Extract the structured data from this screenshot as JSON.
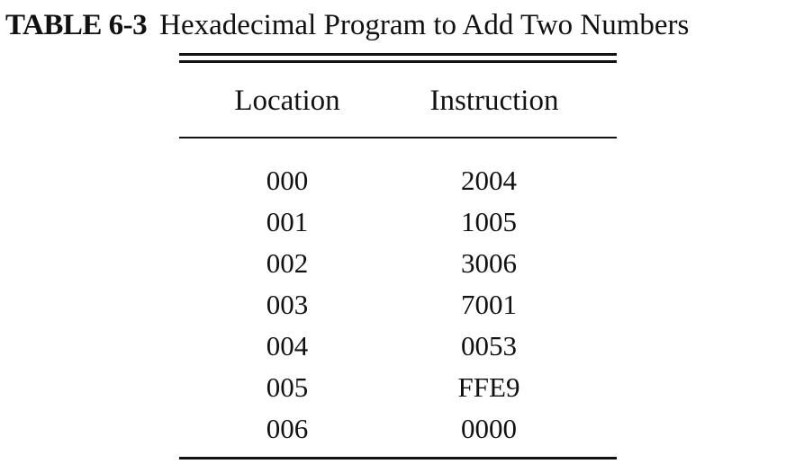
{
  "table": {
    "caption_label": "TABLE 6-3",
    "caption_title": "Hexadecimal Program to Add Two Numbers",
    "columns": [
      "Location",
      "Instruction"
    ],
    "rows": [
      {
        "location": "000",
        "instruction": "2004"
      },
      {
        "location": "001",
        "instruction": "1005"
      },
      {
        "location": "002",
        "instruction": "3006"
      },
      {
        "location": "003",
        "instruction": "7001"
      },
      {
        "location": "004",
        "instruction": "0053"
      },
      {
        "location": "005",
        "instruction": "FFE9"
      },
      {
        "location": "006",
        "instruction": "0000"
      }
    ]
  }
}
